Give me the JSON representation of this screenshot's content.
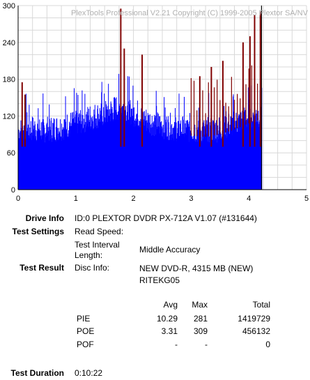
{
  "chart_data": {
    "type": "bar",
    "title": "PlexTools Professional V2.21 Copyright (C) 1999-2005 Plextor SA/NV",
    "xlim": [
      0,
      5
    ],
    "ylim": [
      0,
      300
    ],
    "x_ticks": [
      "0",
      "1",
      "2",
      "3",
      "4",
      "5"
    ],
    "y_ticks": [
      "0",
      "60",
      "120",
      "180",
      "240",
      "300"
    ],
    "grid": true,
    "data_end_x": 4.22,
    "series": [
      {
        "name": "",
        "color": "#0000ff",
        "description_profile": [
          [
            0.0,
            95
          ],
          [
            0.25,
            100
          ],
          [
            0.5,
            98
          ],
          [
            0.75,
            102
          ],
          [
            1.0,
            110
          ],
          [
            1.25,
            118
          ],
          [
            1.5,
            125
          ],
          [
            1.75,
            135
          ],
          [
            2.0,
            125
          ],
          [
            2.25,
            112
          ],
          [
            2.5,
            105
          ],
          [
            2.75,
            100
          ],
          [
            3.0,
            98
          ],
          [
            3.25,
            96
          ],
          [
            3.5,
            100
          ],
          [
            3.75,
            108
          ],
          [
            4.0,
            118
          ],
          [
            4.22,
            125
          ]
        ]
      },
      {
        "name": "",
        "color": "#800000",
        "spikes": [
          [
            0.07,
            175
          ],
          [
            0.12,
            155
          ],
          [
            1.78,
            295
          ],
          [
            1.84,
            230
          ],
          [
            2.15,
            220
          ],
          [
            3.15,
            185
          ],
          [
            3.35,
            200
          ],
          [
            3.55,
            210
          ],
          [
            3.9,
            240
          ],
          [
            4.02,
            250
          ],
          [
            4.1,
            285
          ],
          [
            4.2,
            290
          ]
        ]
      }
    ]
  },
  "info": {
    "drive_info_label": "Drive Info",
    "drive_info_value": "ID:0 PLEXTOR DVDR PX-712A V1.07 (#131644)",
    "test_settings_label": "Test Settings",
    "read_speed_label": "Read Speed:",
    "test_interval_label": "Test Interval Length:",
    "test_interval_value": "Middle Accuracy",
    "test_result_label": "Test Result",
    "disc_info_label": "Disc Info:",
    "disc_info_value": "NEW DVD-R, 4315 MB (NEW) RITEKG05",
    "table": {
      "headers": [
        "",
        "Avg",
        "Max",
        "Total"
      ],
      "rows": [
        {
          "name": "PIE",
          "avg": "10.29",
          "max": "281",
          "total": "1419729"
        },
        {
          "name": "POE",
          "avg": "3.31",
          "max": "309",
          "total": "456132"
        },
        {
          "name": "POF",
          "avg": "-",
          "max": "-",
          "total": "0"
        }
      ]
    },
    "test_duration_label": "Test Duration",
    "test_duration_value": "0:10:22"
  }
}
